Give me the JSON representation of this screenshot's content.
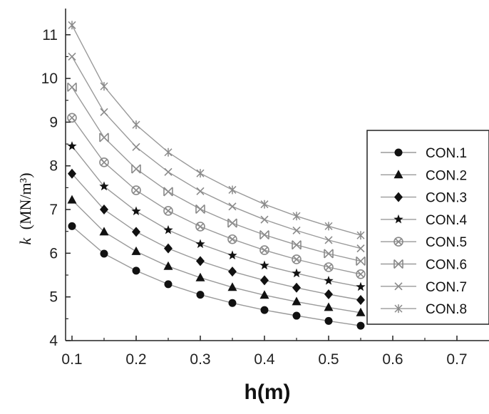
{
  "chart_data": {
    "type": "line",
    "title": "",
    "xlabel": "h(m)",
    "ylabel": {
      "symbol": "k",
      "unit": "(MN/m³)"
    },
    "xlim": [
      0.09,
      0.75
    ],
    "ylim": [
      4,
      11.6
    ],
    "x_ticks": [
      "0.1",
      "0.2",
      "0.3",
      "0.4",
      "0.5",
      "0.6",
      "0.7"
    ],
    "y_ticks": [
      "4",
      "5",
      "6",
      "7",
      "8",
      "9",
      "10",
      "11"
    ],
    "x": [
      0.1,
      0.15,
      0.2,
      0.25,
      0.3,
      0.35,
      0.4,
      0.45,
      0.5,
      0.55
    ],
    "legend_placement": "right",
    "grid": false,
    "series": [
      {
        "name": "CON.1",
        "marker": "circle",
        "values": [
          6.62,
          5.99,
          5.6,
          5.29,
          5.05,
          4.86,
          4.7,
          4.57,
          4.45,
          4.34
        ]
      },
      {
        "name": "CON.2",
        "marker": "triangle",
        "values": [
          7.22,
          6.49,
          6.04,
          5.7,
          5.44,
          5.22,
          5.04,
          4.89,
          4.76,
          4.64
        ]
      },
      {
        "name": "CON.3",
        "marker": "diamond",
        "values": [
          7.82,
          7.0,
          6.49,
          6.11,
          5.82,
          5.58,
          5.38,
          5.21,
          5.06,
          4.93
        ]
      },
      {
        "name": "CON.4",
        "marker": "star",
        "values": [
          8.45,
          7.53,
          6.96,
          6.53,
          6.21,
          5.95,
          5.72,
          5.54,
          5.37,
          5.23
        ]
      },
      {
        "name": "CON.5",
        "marker": "circle-x",
        "values": [
          9.1,
          8.08,
          7.44,
          6.97,
          6.61,
          6.32,
          6.07,
          5.86,
          5.68,
          5.52
        ]
      },
      {
        "name": "CON.6",
        "marker": "box-x",
        "values": [
          9.8,
          8.65,
          7.93,
          7.41,
          7.01,
          6.69,
          6.42,
          6.19,
          5.99,
          5.82
        ]
      },
      {
        "name": "CON.7",
        "marker": "cross",
        "values": [
          10.5,
          9.23,
          8.43,
          7.86,
          7.42,
          7.07,
          6.77,
          6.52,
          6.3,
          6.11
        ]
      },
      {
        "name": "CON.8",
        "marker": "asterisk",
        "values": [
          11.22,
          9.82,
          8.94,
          8.31,
          7.83,
          7.45,
          7.12,
          6.85,
          6.62,
          6.41
        ]
      }
    ],
    "colors": {
      "line": "#9a9a9a",
      "marker_dark": "#111111",
      "marker_light": "#8a8a8a",
      "axis": "#222222"
    }
  }
}
